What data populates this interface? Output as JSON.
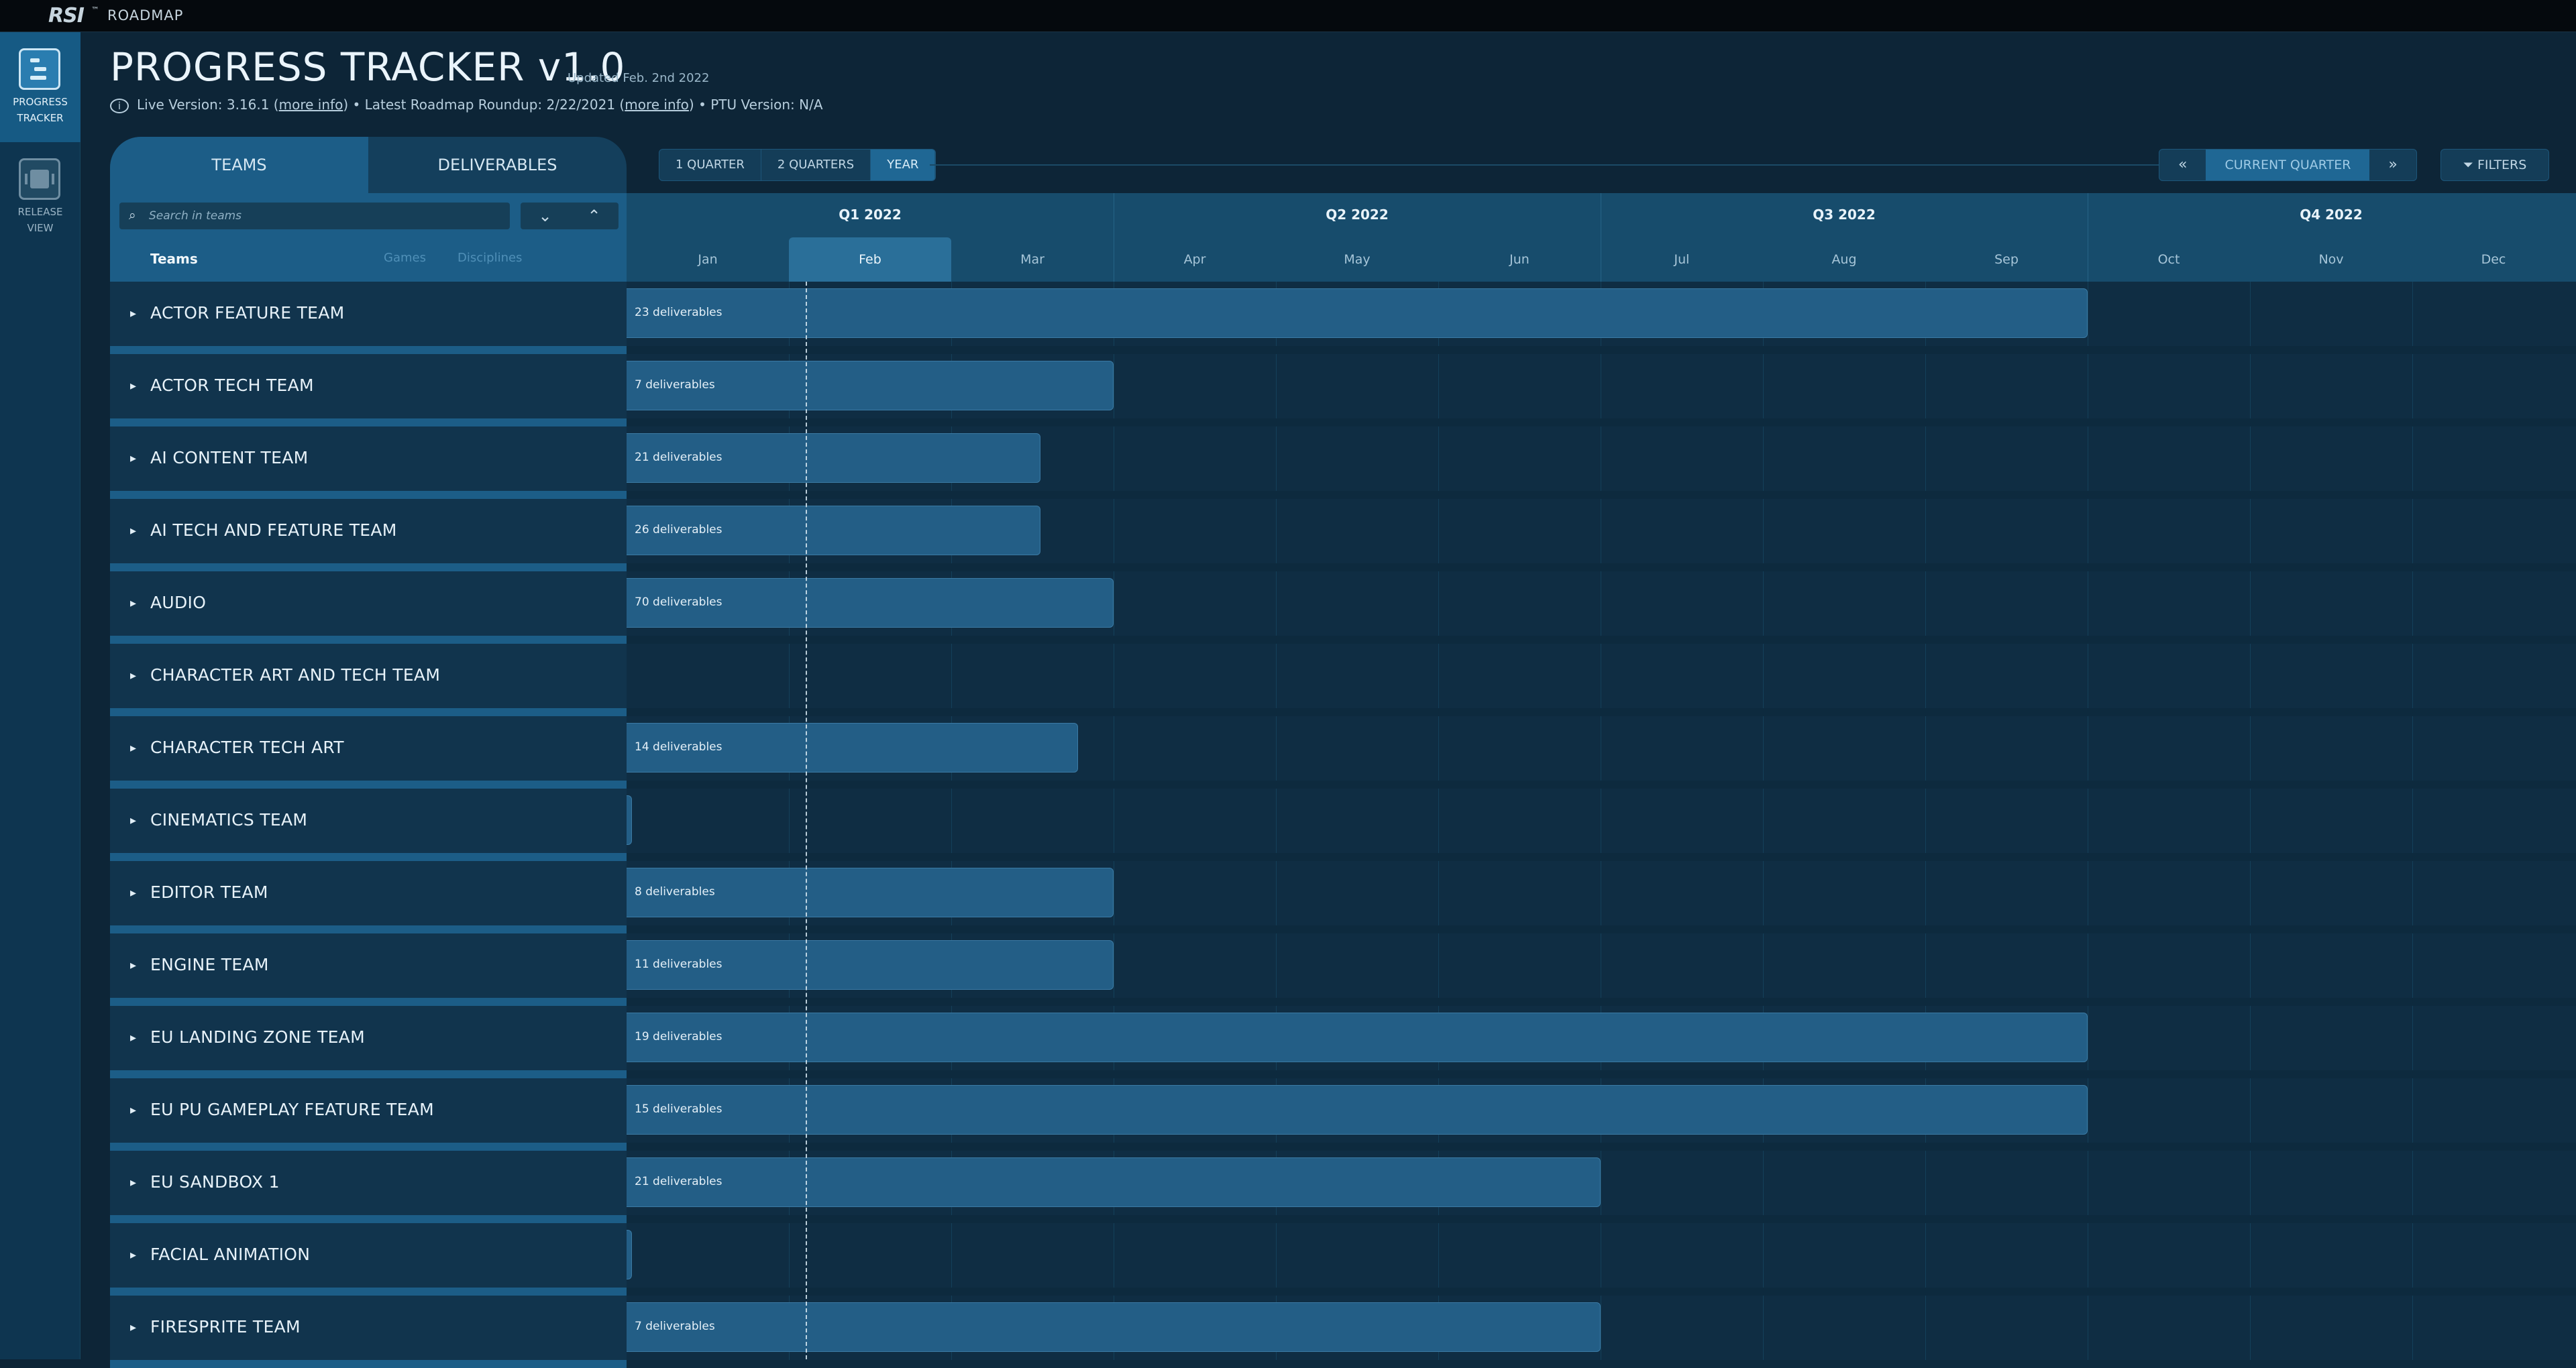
{
  "app": {
    "logo": "RSI",
    "tm": "™",
    "section": "ROADMAP"
  },
  "sidebar": {
    "items": [
      {
        "label_1": "PROGRESS",
        "label_2": "TRACKER",
        "icon": "progress-tracker-icon",
        "active": true
      },
      {
        "label_1": "RELEASE",
        "label_2": "VIEW",
        "icon": "release-view-icon",
        "active": false
      }
    ]
  },
  "header": {
    "title": "PROGRESS TRACKER v1.0",
    "updated": "Updated Feb. 2nd 2022",
    "info_live": "Live Version: 3.16.1 (",
    "more_info": "more info",
    "info_mid": ") • Latest Roadmap Roundup: 2/22/2021 (",
    "info_end": ") • PTU Version: N/A"
  },
  "tabs": {
    "teams": "TEAMS",
    "deliverables": "DELIVERABLES"
  },
  "search": {
    "placeholder": "Search in teams"
  },
  "columns": {
    "teams": "Teams",
    "games": "Games",
    "disciplines": "Disciplines"
  },
  "zoom": {
    "q1": "1 QUARTER",
    "q2": "2 QUARTERS",
    "year": "YEAR",
    "selected": "YEAR"
  },
  "nav": {
    "current": "CURRENT QUARTER",
    "filters": "FILTERS"
  },
  "timeline": {
    "quarters": [
      "Q1 2022",
      "Q2 2022",
      "Q3 2022",
      "Q4 2022"
    ],
    "months": [
      "Jan",
      "Feb",
      "Mar",
      "Apr",
      "May",
      "Jun",
      "Jul",
      "Aug",
      "Sep",
      "Oct",
      "Nov",
      "Dec"
    ],
    "current_month": "Feb"
  },
  "teams": [
    {
      "name": "ACTOR FEATURE TEAM",
      "deliverables": "23 deliverables",
      "end_month": 9.0
    },
    {
      "name": "ACTOR TECH TEAM",
      "deliverables": "7 deliverables",
      "end_month": 3.0
    },
    {
      "name": "AI CONTENT TEAM",
      "deliverables": "21 deliverables",
      "end_month": 2.55
    },
    {
      "name": "AI TECH AND FEATURE TEAM",
      "deliverables": "26 deliverables",
      "end_month": 2.55
    },
    {
      "name": "AUDIO",
      "deliverables": "70 deliverables",
      "end_month": 3.0
    },
    {
      "name": "CHARACTER ART AND TECH TEAM",
      "deliverables": "",
      "end_month": 0
    },
    {
      "name": "CHARACTER TECH ART",
      "deliverables": "14 deliverables",
      "end_month": 2.78
    },
    {
      "name": "CINEMATICS TEAM",
      "deliverables": "",
      "end_month": 0.03
    },
    {
      "name": "EDITOR TEAM",
      "deliverables": "8 deliverables",
      "end_month": 3.0
    },
    {
      "name": "ENGINE TEAM",
      "deliverables": "11 deliverables",
      "end_month": 3.0
    },
    {
      "name": "EU LANDING ZONE TEAM",
      "deliverables": "19 deliverables",
      "end_month": 9.0
    },
    {
      "name": "EU PU GAMEPLAY FEATURE TEAM",
      "deliverables": "15 deliverables",
      "end_month": 9.0
    },
    {
      "name": "EU SANDBOX 1",
      "deliverables": "21 deliverables",
      "end_month": 6.0
    },
    {
      "name": "FACIAL ANIMATION",
      "deliverables": "",
      "end_month": 0.03
    },
    {
      "name": "FIRESPRITE TEAM",
      "deliverables": "7 deliverables",
      "end_month": 6.0
    }
  ]
}
